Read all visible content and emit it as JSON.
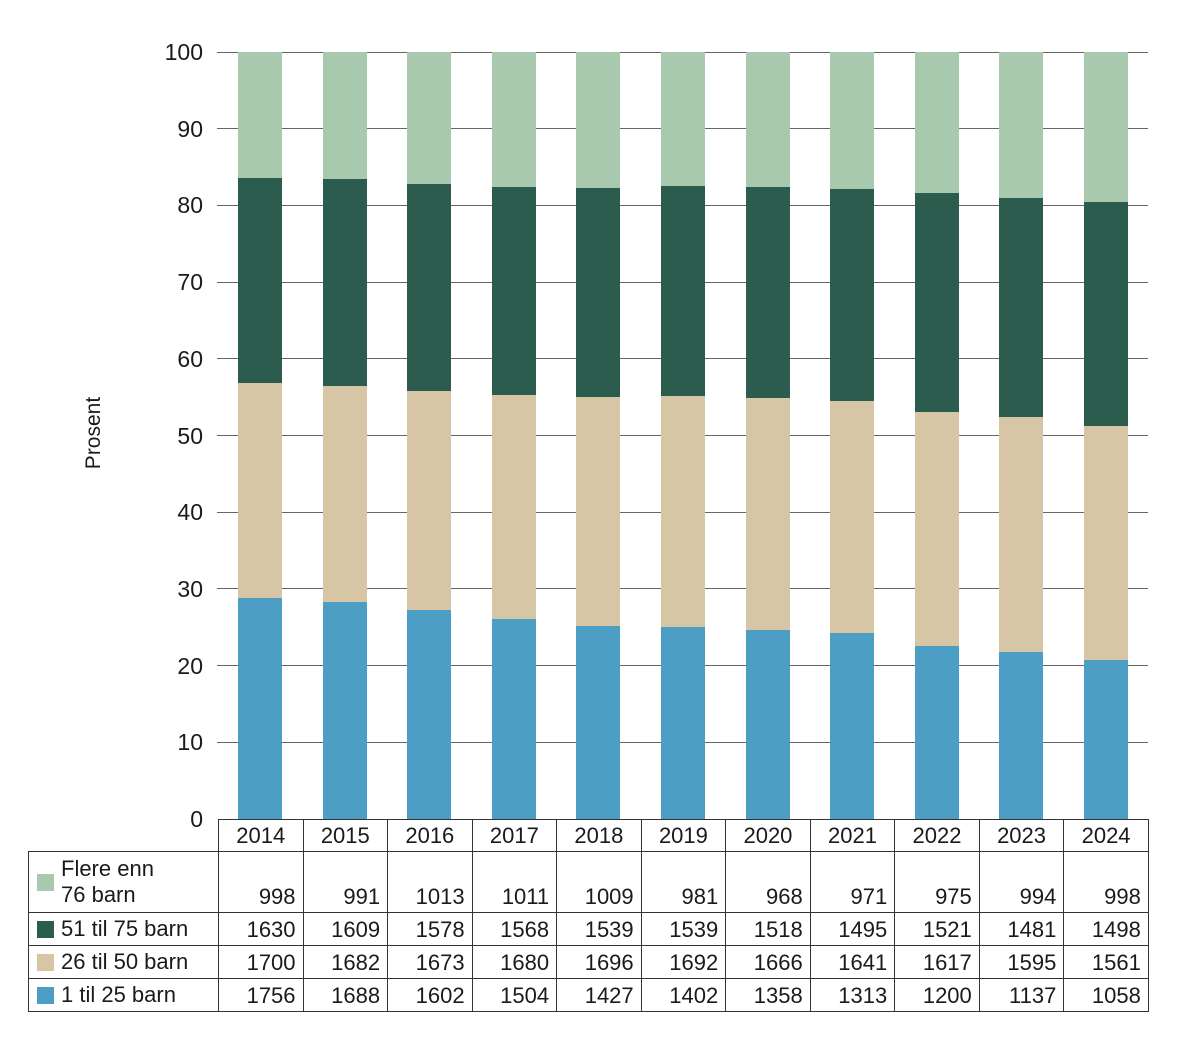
{
  "chart_data": {
    "type": "bar",
    "stacked": true,
    "percent_normalized": true,
    "title": "",
    "ylabel": "Prosent",
    "ylim": [
      0,
      100
    ],
    "yticks": [
      0,
      10,
      20,
      30,
      40,
      50,
      60,
      70,
      80,
      90,
      100
    ],
    "grid": true,
    "legend_position": "table-left",
    "categories": [
      "2014",
      "2015",
      "2016",
      "2017",
      "2018",
      "2019",
      "2020",
      "2021",
      "2022",
      "2023",
      "2024"
    ],
    "series": [
      {
        "name": "Flere enn 76 barn",
        "label_lines": [
          "Flere enn",
          "76 barn"
        ],
        "color": "#a8c9ad",
        "values": [
          998,
          991,
          1013,
          1011,
          1009,
          981,
          968,
          971,
          975,
          994,
          998
        ]
      },
      {
        "name": "51 til 75 barn",
        "label_lines": [
          "51 til 75 barn"
        ],
        "color": "#2b5c4e",
        "values": [
          1630,
          1609,
          1578,
          1568,
          1539,
          1539,
          1518,
          1495,
          1521,
          1481,
          1498
        ]
      },
      {
        "name": "26 til 50 barn",
        "label_lines": [
          "26 til 50 barn"
        ],
        "color": "#d6c6a5",
        "values": [
          1700,
          1682,
          1673,
          1680,
          1696,
          1692,
          1666,
          1641,
          1617,
          1595,
          1561
        ]
      },
      {
        "name": "1 til 25 barn",
        "label_lines": [
          "1 til 25 barn"
        ],
        "color": "#4d9ec4",
        "values": [
          1756,
          1688,
          1602,
          1504,
          1427,
          1402,
          1358,
          1313,
          1200,
          1137,
          1058
        ]
      }
    ],
    "stack_order_bottom_to_top": [
      "1 til 25 barn",
      "26 til 50 barn",
      "51 til 75 barn",
      "Flere enn 76 barn"
    ]
  },
  "colors": {
    "background": "#ffffff",
    "gridline": "#666666",
    "table_border": "#333333",
    "text": "#1a1a1a"
  }
}
